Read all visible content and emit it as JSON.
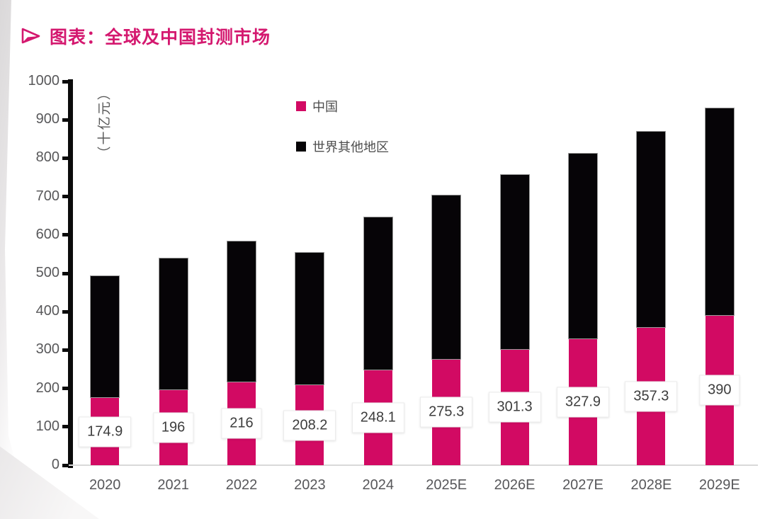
{
  "header": {
    "title": "图表：全球及中国封测市场",
    "bullet_icon": "arrow-bullet"
  },
  "colors": {
    "title_pink": "#d4186f",
    "china_pink": "#d20a63",
    "row_black": "#060407",
    "axis_black": "#0b0b0b",
    "baseline_gray": "#d9d9d9",
    "text_gray": "#58585a"
  },
  "chart_data": {
    "type": "bar",
    "stacked": true,
    "title": "图表：全球及中国封测市场",
    "unit_label": "（十亿元）",
    "xlabel": "",
    "ylabel": "（十亿元）",
    "ylim": [
      0,
      1000
    ],
    "yticks": [
      0,
      100,
      200,
      300,
      400,
      500,
      600,
      700,
      800,
      900,
      1000
    ],
    "grid": false,
    "legend_position": "top-center-vertical",
    "categories": [
      "2020",
      "2021",
      "2022",
      "2023",
      "2024",
      "2025E",
      "2026E",
      "2027E",
      "2028E",
      "2029E"
    ],
    "series": [
      {
        "name": "中国",
        "color": "#d20a63",
        "values": [
          174.9,
          196,
          216,
          208.2,
          248.1,
          275.3,
          301.3,
          327.9,
          357.3,
          390
        ]
      },
      {
        "name": "世界其他地区",
        "color": "#060407",
        "values_estimated": true,
        "values": [
          320,
          344,
          369,
          347,
          400,
          430,
          457,
          486,
          514,
          542
        ]
      }
    ],
    "totals_estimated": [
      494.9,
      540,
      585,
      555.2,
      648.1,
      705.3,
      758.3,
      813.9,
      871.3,
      932
    ],
    "data_labels": [
      "174.9",
      "196",
      "216",
      "208.2",
      "248.1",
      "275.3",
      "301.3",
      "327.9",
      "357.3",
      "390"
    ],
    "data_label_series": "中国",
    "data_label_position": "inside-center-of-china-segment"
  }
}
